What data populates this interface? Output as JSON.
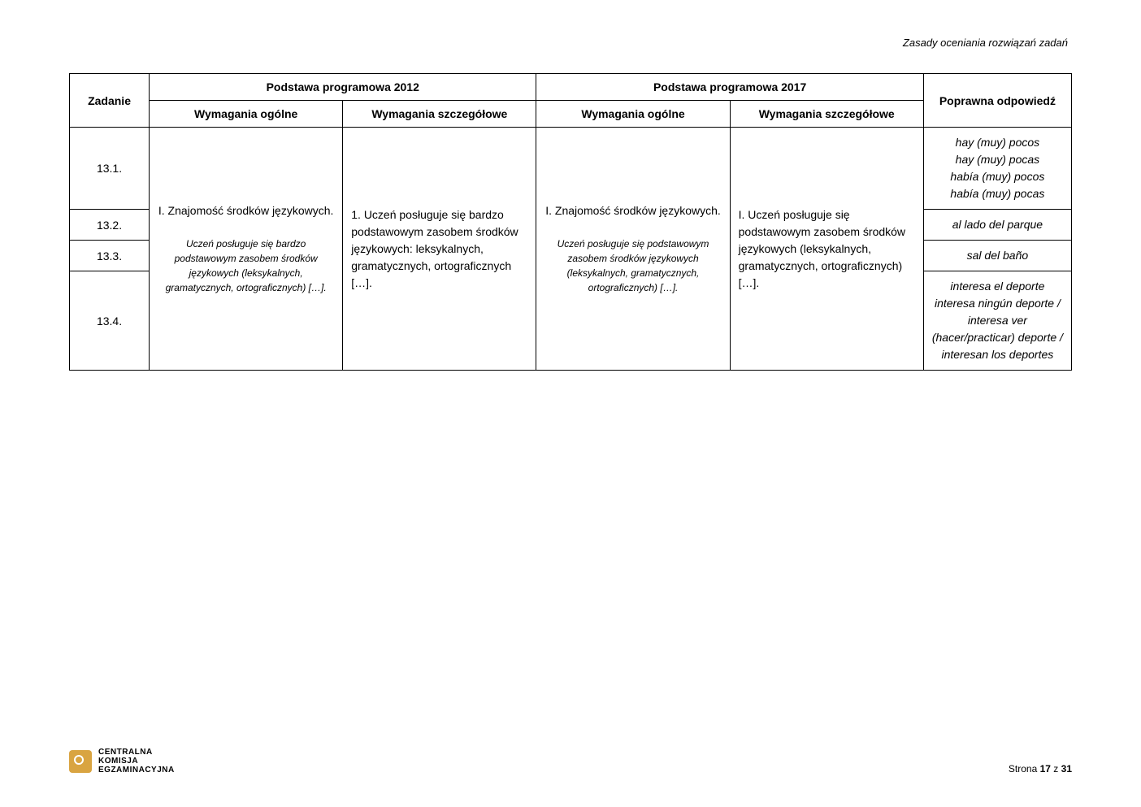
{
  "header": {
    "right_text": "Zasady oceniania rozwiązań zadań"
  },
  "table": {
    "head": {
      "zadanie": "Zadanie",
      "pp2012": "Podstawa programowa 2012",
      "pp2017": "Podstawa programowa 2017",
      "poprawna": "Poprawna odpowiedź",
      "wo": "Wymagania ogólne",
      "ws": "Wymagania szczegółowe"
    },
    "tasks": {
      "r1": "13.1.",
      "r2": "13.2.",
      "r3": "13.3.",
      "r4": "13.4."
    },
    "wo2012": {
      "main": "I. Znajomość środków językowych.",
      "sub": "Uczeń posługuje się bardzo podstawowym zasobem środków językowych (leksykalnych, gramatycznych, ortograficznych) […]."
    },
    "ws2012": {
      "main": "1. Uczeń posługuje się bardzo podstawowym zasobem środków językowych: leksykalnych, gramatycznych, ortograficznych […]."
    },
    "wo2017": {
      "main": "I. Znajomość środków językowych.",
      "sub": "Uczeń posługuje się podstawowym zasobem środków językowych (leksykalnych, gramatycznych, ortograficznych) […]."
    },
    "ws2017": {
      "main": "I. Uczeń posługuje się podstawowym zasobem środków językowych (leksykalnych, gramatycznych, ortograficznych) […]."
    },
    "answers": {
      "r1": "hay (muy) pocos\nhay (muy) pocas\nhabía (muy) pocos\nhabía (muy) pocas",
      "r2": "al lado del parque",
      "r3": "sal del baño",
      "r4": "interesa el deporte\ninteresa ningún deporte /\ninteresa ver (hacer/practicar) deporte /\ninteresan los deportes"
    }
  },
  "footer": {
    "logo_line1": "CENTRALNA",
    "logo_line2": "KOMISJA",
    "logo_line3": "EGZAMINACYJNA",
    "page_prefix": "Strona ",
    "page_num": "17",
    "page_mid": " z ",
    "page_total": "31"
  }
}
